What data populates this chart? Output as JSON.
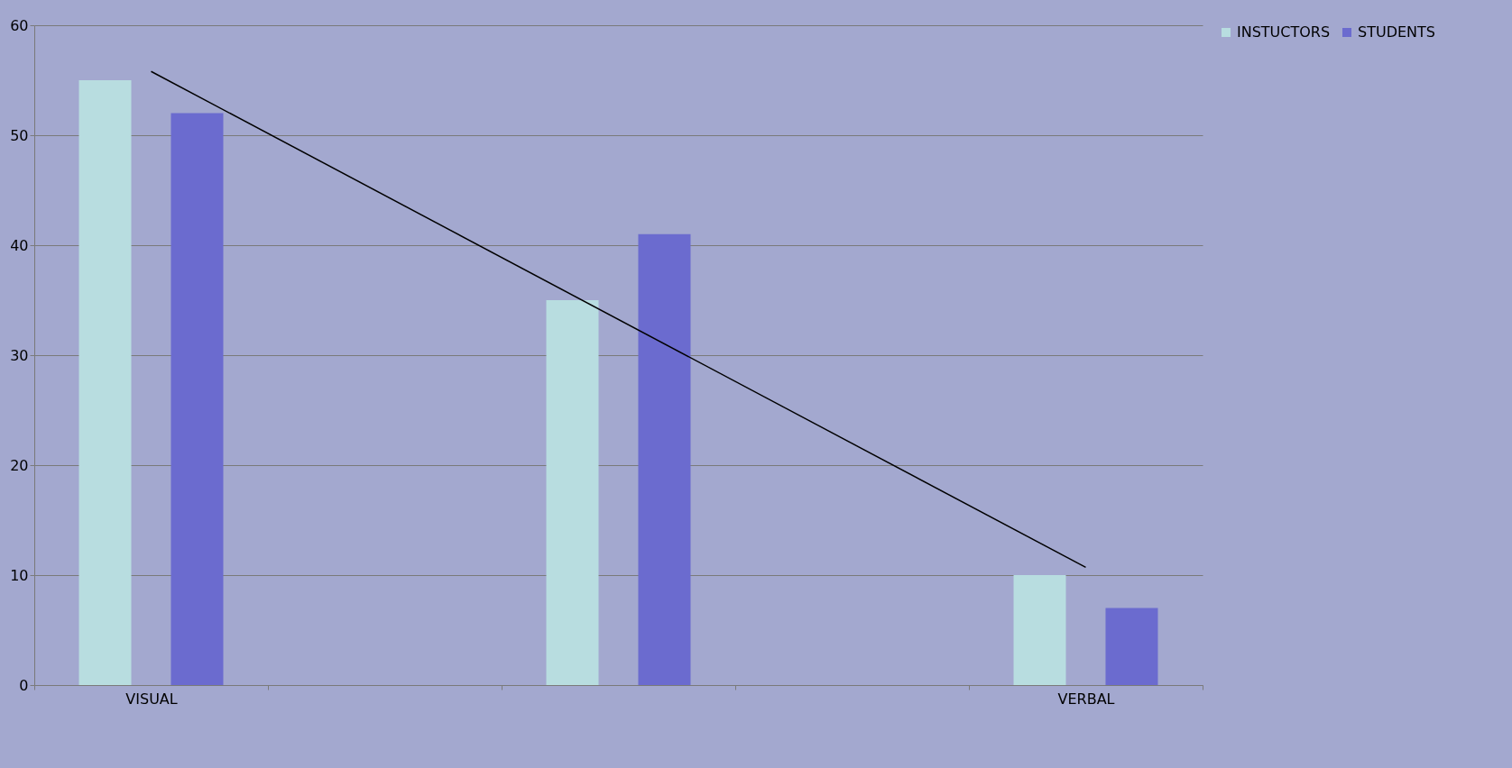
{
  "chart_data": {
    "type": "bar",
    "categories": [
      "VISUAL",
      null,
      null,
      null,
      "VERBAL"
    ],
    "series": [
      {
        "name": "INSTUCTORS",
        "color": "#b8dde0",
        "values": [
          55,
          null,
          35,
          null,
          10
        ]
      },
      {
        "name": "STUDENTS",
        "color": "#6b6bcf",
        "values": [
          52,
          null,
          41,
          null,
          7
        ]
      },
      {
        "type": "line",
        "color": "#000000",
        "x": [
          "VISUAL",
          "VERBAL"
        ],
        "values": [
          55.8,
          10.7
        ]
      }
    ],
    "ylim": [
      0,
      60
    ],
    "yticks": [
      0,
      10,
      20,
      30,
      40,
      50,
      60
    ],
    "grid": "y",
    "legend": "right"
  }
}
